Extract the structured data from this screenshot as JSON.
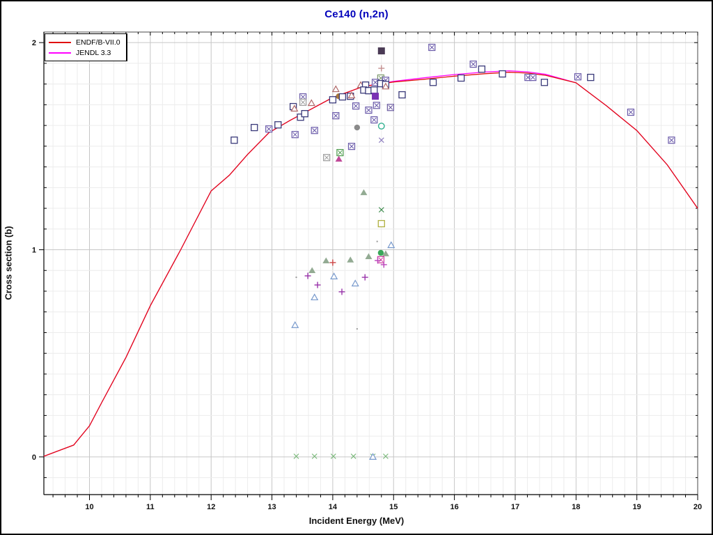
{
  "window": {
    "background": "#ffffff",
    "border_color": "#000000"
  },
  "chart_data": {
    "type": "line+scatter",
    "title": "Ce140 (n,2n)",
    "title_color": "#0000bb",
    "xlabel": "Incident Energy (MeV)",
    "ylabel": "Cross section (b)",
    "xlim": [
      9.25,
      20.0
    ],
    "ylim": [
      -0.182,
      2.051
    ],
    "x_major_ticks": [
      10,
      11,
      12,
      13,
      14,
      15,
      16,
      17,
      18,
      19,
      20
    ],
    "x_minor_step": 0.2,
    "y_major_ticks": [
      0,
      1,
      2
    ],
    "y_minor_step": 0.1,
    "grid": {
      "show": true,
      "minor_color": "#ececec",
      "major_color": "#c6c6c6"
    },
    "axis_color": "#000000",
    "tick_label_color": "#111111",
    "legend": {
      "position": "top-left",
      "entries": [
        {
          "label": "ENDF/B-VII.0",
          "color": "#e01010"
        },
        {
          "label": "JENDL 3.3",
          "color": "#ff00ff"
        }
      ]
    },
    "curves": [
      {
        "name": "JENDL 3.3",
        "color": "#ff00ff",
        "points": [
          [
            9.25,
            0.003
          ],
          [
            9.45,
            0.025
          ],
          [
            9.74,
            0.057
          ],
          [
            10.0,
            0.15
          ],
          [
            10.2,
            0.262
          ],
          [
            10.6,
            0.48
          ],
          [
            11.0,
            0.73
          ],
          [
            11.5,
            1.0
          ],
          [
            12.0,
            1.284
          ],
          [
            12.3,
            1.36
          ],
          [
            12.6,
            1.46
          ],
          [
            12.95,
            1.565
          ],
          [
            13.3,
            1.625
          ],
          [
            13.6,
            1.672
          ],
          [
            14.0,
            1.735
          ],
          [
            14.5,
            1.788
          ],
          [
            15.0,
            1.813
          ],
          [
            15.5,
            1.83
          ],
          [
            16.0,
            1.846
          ],
          [
            16.5,
            1.858
          ],
          [
            16.9,
            1.864
          ],
          [
            17.2,
            1.859
          ],
          [
            17.5,
            1.847
          ],
          [
            18.0,
            1.806
          ],
          [
            18.5,
            1.695
          ],
          [
            19.0,
            1.575
          ],
          [
            19.5,
            1.41
          ],
          [
            20.0,
            1.2
          ]
        ]
      },
      {
        "name": "ENDF/B-VII.0",
        "color": "#e01010",
        "points": [
          [
            9.25,
            0.003
          ],
          [
            9.45,
            0.025
          ],
          [
            9.74,
            0.057
          ],
          [
            10.0,
            0.15
          ],
          [
            10.2,
            0.262
          ],
          [
            10.6,
            0.48
          ],
          [
            11.0,
            0.73
          ],
          [
            11.5,
            1.0
          ],
          [
            12.0,
            1.284
          ],
          [
            12.3,
            1.36
          ],
          [
            12.6,
            1.46
          ],
          [
            12.95,
            1.565
          ],
          [
            13.3,
            1.625
          ],
          [
            13.6,
            1.672
          ],
          [
            14.0,
            1.735
          ],
          [
            14.5,
            1.788
          ],
          [
            15.0,
            1.81
          ],
          [
            15.5,
            1.823
          ],
          [
            16.0,
            1.838
          ],
          [
            16.5,
            1.85
          ],
          [
            16.9,
            1.857
          ],
          [
            17.2,
            1.853
          ],
          [
            17.5,
            1.842
          ],
          [
            18.0,
            1.806
          ],
          [
            18.5,
            1.695
          ],
          [
            19.0,
            1.575
          ],
          [
            19.5,
            1.41
          ],
          [
            20.0,
            1.2
          ]
        ]
      }
    ],
    "scatter_format": [
      "energy_MeV",
      "cross_section_b",
      "marker",
      "color"
    ],
    "scatter": [
      [
        14.8,
        1.96,
        "fsq",
        "#4a3a55"
      ],
      [
        14.8,
        1.876,
        "plus",
        "#c49090"
      ],
      [
        14.79,
        1.829,
        "xsq",
        "#7d9a6d"
      ],
      [
        14.87,
        1.818,
        "xsq",
        "#6858a8"
      ],
      [
        14.46,
        1.795,
        "tri",
        "#b06868"
      ],
      [
        14.54,
        1.795,
        "sq",
        "#3a3a7a"
      ],
      [
        14.7,
        1.808,
        "xsq",
        "#6858a8"
      ],
      [
        14.79,
        1.802,
        "sq",
        "#3a3a7a"
      ],
      [
        14.87,
        1.798,
        "sq",
        "#3a3a7a"
      ],
      [
        14.87,
        1.788,
        "tri",
        "#b06868"
      ],
      [
        14.51,
        1.771,
        "sq",
        "#3a3a7a"
      ],
      [
        14.59,
        1.768,
        "sq",
        "#3a3a7a"
      ],
      [
        14.68,
        1.771,
        "sq",
        "#3a3a7a"
      ],
      [
        14.05,
        1.775,
        "tri",
        "#b06868"
      ],
      [
        14.1,
        1.741,
        "fcirc",
        "#a87838"
      ],
      [
        14.0,
        1.724,
        "sq",
        "#3a3a7a"
      ],
      [
        14.16,
        1.738,
        "sq",
        "#3a3a7a"
      ],
      [
        14.29,
        1.741,
        "sq",
        "#3a3a7a"
      ],
      [
        14.31,
        1.745,
        "tri",
        "#b06868"
      ],
      [
        14.7,
        1.741,
        "fsq",
        "#7a32b4"
      ],
      [
        14.38,
        1.694,
        "xsq",
        "#6858a8"
      ],
      [
        14.59,
        1.674,
        "xsq",
        "#6858a8"
      ],
      [
        14.72,
        1.697,
        "xsq",
        "#6858a8"
      ],
      [
        14.95,
        1.687,
        "xsq",
        "#6b5ba0"
      ],
      [
        14.05,
        1.647,
        "xsq",
        "#6858a8"
      ],
      [
        14.68,
        1.627,
        "xsq",
        "#6858a8"
      ],
      [
        14.8,
        1.597,
        "circ",
        "#30b090"
      ],
      [
        14.4,
        1.59,
        "fcirc",
        "#8a8a8a"
      ],
      [
        14.8,
        1.529,
        "x",
        "#9080c0"
      ],
      [
        13.51,
        1.738,
        "xsq",
        "#6858a8"
      ],
      [
        13.51,
        1.712,
        "xsq",
        "#9a9a9a"
      ],
      [
        13.35,
        1.691,
        "sq",
        "#3a3a7a"
      ],
      [
        13.65,
        1.708,
        "tri",
        "#b06868"
      ],
      [
        13.37,
        1.681,
        "tri",
        "#b06868"
      ],
      [
        13.47,
        1.64,
        "sq",
        "#3a3a7a"
      ],
      [
        13.54,
        1.657,
        "sq",
        "#3a3a7a"
      ],
      [
        12.71,
        1.59,
        "sq",
        "#3a3a7a"
      ],
      [
        12.95,
        1.583,
        "xsq",
        "#6858a8"
      ],
      [
        13.1,
        1.603,
        "sq",
        "#3a3a7a"
      ],
      [
        12.38,
        1.529,
        "sq",
        "#3a3a7a"
      ],
      [
        13.38,
        1.556,
        "xsq",
        "#6858a8"
      ],
      [
        13.7,
        1.576,
        "xsq",
        "#6858a8"
      ],
      [
        14.31,
        1.499,
        "xsq",
        "#6858a8"
      ],
      [
        14.12,
        1.469,
        "xsq",
        "#4a9a4a"
      ],
      [
        13.9,
        1.445,
        "xsq",
        "#9a9a9a"
      ],
      [
        14.1,
        1.439,
        "ftri",
        "#c04898"
      ],
      [
        15.14,
        1.748,
        "sq",
        "#3a3a7a"
      ],
      [
        15.63,
        1.977,
        "xsq",
        "#6858a8"
      ],
      [
        16.31,
        1.896,
        "xsq",
        "#6858a8"
      ],
      [
        16.45,
        1.872,
        "sq",
        "#3a3a7a"
      ],
      [
        16.11,
        1.829,
        "sq",
        "#3a3a7a"
      ],
      [
        15.65,
        1.808,
        "sq",
        "#3a3a7a"
      ],
      [
        16.79,
        1.849,
        "sq",
        "#3a3a7a"
      ],
      [
        17.21,
        1.832,
        "xsq",
        "#6858a8"
      ],
      [
        17.29,
        1.832,
        "xsq",
        "#6858a8"
      ],
      [
        17.48,
        1.808,
        "sq",
        "#3a3a7a"
      ],
      [
        18.03,
        1.835,
        "xsq",
        "#6858a8"
      ],
      [
        18.24,
        1.832,
        "sq",
        "#3a3a7a"
      ],
      [
        18.9,
        1.664,
        "xsq",
        "#6858a8"
      ],
      [
        19.57,
        1.529,
        "xsq",
        "#6858a8"
      ],
      [
        14.51,
        1.277,
        "ftri",
        "#93ab93"
      ],
      [
        14.8,
        1.193,
        "x",
        "#3a8a4a"
      ],
      [
        14.8,
        1.126,
        "sq",
        "#b0b040"
      ],
      [
        14.96,
        1.022,
        "tri",
        "#7799cc"
      ],
      [
        14.79,
        0.985,
        "fcirc",
        "#3aa85a"
      ],
      [
        14.87,
        0.982,
        "ftri",
        "#93ab93"
      ],
      [
        14.59,
        0.968,
        "ftri",
        "#93ab93"
      ],
      [
        14.29,
        0.952,
        "ftri",
        "#93ab93"
      ],
      [
        14.79,
        0.952,
        "xsq",
        "#cc3399"
      ],
      [
        14.84,
        0.928,
        "plus",
        "#bb44bb"
      ],
      [
        14.74,
        0.948,
        "plus",
        "#bb44bb"
      ],
      [
        14.0,
        0.938,
        "plus",
        "#cc4444"
      ],
      [
        13.89,
        0.948,
        "ftri",
        "#93ab93"
      ],
      [
        13.66,
        0.901,
        "ftri",
        "#93ab93"
      ],
      [
        13.59,
        0.874,
        "plus",
        "#9933aa"
      ],
      [
        13.75,
        0.83,
        "plus",
        "#9933aa"
      ],
      [
        14.02,
        0.871,
        "tri",
        "#7799cc"
      ],
      [
        14.37,
        0.837,
        "tri",
        "#7799cc"
      ],
      [
        14.53,
        0.867,
        "plus",
        "#9933aa"
      ],
      [
        14.15,
        0.797,
        "plus",
        "#9933aa"
      ],
      [
        13.7,
        0.77,
        "tri",
        "#7799cc"
      ],
      [
        13.38,
        0.636,
        "tri",
        "#7799cc"
      ],
      [
        13.4,
        0.867,
        "dot",
        "#999999"
      ],
      [
        14.4,
        0.618,
        "dot",
        "#999999"
      ],
      [
        14.73,
        1.04,
        "dot",
        "#999999"
      ],
      [
        13.4,
        0.003,
        "x",
        "#7ab87a"
      ],
      [
        13.7,
        0.003,
        "x",
        "#7ab87a"
      ],
      [
        14.01,
        0.003,
        "x",
        "#7ab87a"
      ],
      [
        14.34,
        0.003,
        "x",
        "#7ab87a"
      ],
      [
        14.66,
        0.003,
        "x",
        "#7ab87a"
      ],
      [
        14.66,
        0.0,
        "tri",
        "#7799cc"
      ],
      [
        14.87,
        0.003,
        "x",
        "#7ab87a"
      ]
    ]
  }
}
